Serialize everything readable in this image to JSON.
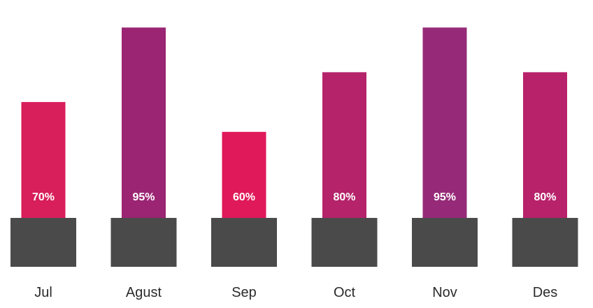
{
  "chart_data": {
    "type": "bar",
    "categories": [
      "Jul",
      "Agust",
      "Sep",
      "Oct",
      "Nov",
      "Des"
    ],
    "values": [
      70,
      95,
      60,
      80,
      95,
      80
    ],
    "value_labels": [
      "70%",
      "95%",
      "60%",
      "80%",
      "95%",
      "80%"
    ],
    "bar_colors": [
      "#d81e5b",
      "#9b2573",
      "#e0195a",
      "#b5236a",
      "#962a78",
      "#b8226a"
    ],
    "base_color": "#4a4a4a",
    "title": "",
    "xlabel": "",
    "ylabel": "",
    "ylim": [
      0,
      100
    ],
    "grid": false,
    "legend": "none"
  }
}
